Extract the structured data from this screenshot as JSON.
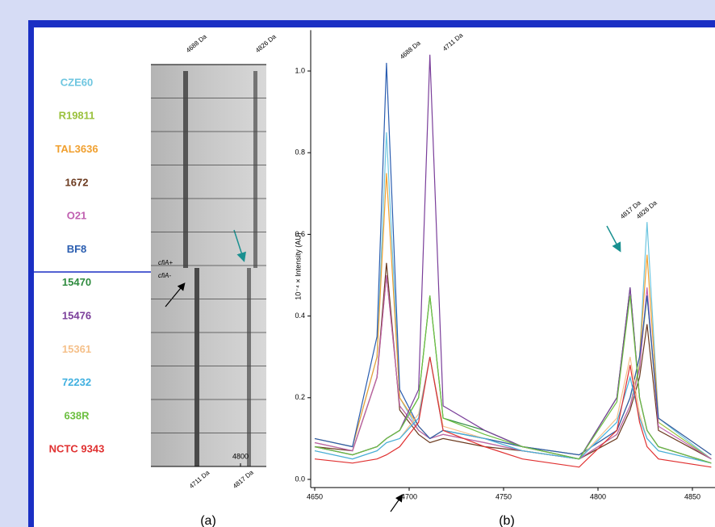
{
  "gel": {
    "panel_label": "(a)",
    "top_annotations": [
      "4688 Da",
      "4826 Da"
    ],
    "bottom_annotations": [
      "4711 Da",
      "4817 Da"
    ],
    "xticks": [
      4800
    ],
    "group_labels": [
      "cfiA+",
      "cfiA-"
    ]
  },
  "chart_data": {
    "type": "line",
    "panel_label": "(b)",
    "ylabel": "10⁻⁴ × Intensity (AU)",
    "annotations": [
      "4688 Da",
      "4711 Da",
      "4817 Da",
      "4826 Da"
    ],
    "x": [
      4650,
      4670,
      4683,
      4688,
      4695,
      4705,
      4711,
      4718,
      4740,
      4760,
      4790,
      4810,
      4817,
      4822,
      4826,
      4832,
      4860
    ],
    "xlim": [
      4650,
      4862
    ],
    "ylim": [
      -0.02,
      1.1
    ],
    "xticks": [
      4650,
      4700,
      4750,
      4800,
      4850
    ],
    "yticks": [
      {
        "value": 0,
        "label": "0.0"
      },
      0.2,
      0.4,
      0.6,
      0.8,
      {
        "value": 1,
        "label": "1.0"
      }
    ],
    "series": [
      {
        "name": "CZE60",
        "color": "#6ec6e0",
        "values": [
          0.1,
          0.08,
          0.3,
          0.85,
          0.2,
          0.12,
          0.1,
          0.12,
          0.1,
          0.08,
          0.06,
          0.12,
          0.2,
          0.3,
          0.63,
          0.15,
          0.05
        ]
      },
      {
        "name": "R19811",
        "color": "#9ac13c",
        "values": [
          0.09,
          0.07,
          0.25,
          0.5,
          0.18,
          0.12,
          0.1,
          0.11,
          0.09,
          0.07,
          0.05,
          0.11,
          0.18,
          0.28,
          0.45,
          0.14,
          0.05
        ]
      },
      {
        "name": "TAL3636",
        "color": "#f0a030",
        "values": [
          0.1,
          0.08,
          0.3,
          0.75,
          0.2,
          0.13,
          0.1,
          0.12,
          0.1,
          0.08,
          0.06,
          0.12,
          0.2,
          0.3,
          0.55,
          0.15,
          0.06
        ]
      },
      {
        "name": "1672",
        "color": "#6b3a1f",
        "values": [
          0.08,
          0.07,
          0.25,
          0.53,
          0.17,
          0.11,
          0.09,
          0.1,
          0.08,
          0.07,
          0.05,
          0.1,
          0.17,
          0.25,
          0.38,
          0.12,
          0.05
        ]
      },
      {
        "name": "O21",
        "color": "#c060b0",
        "values": [
          0.09,
          0.07,
          0.25,
          0.5,
          0.18,
          0.12,
          0.1,
          0.11,
          0.09,
          0.07,
          0.05,
          0.11,
          0.18,
          0.27,
          0.47,
          0.13,
          0.05
        ]
      },
      {
        "name": "BF8",
        "color": "#2a5db0",
        "values": [
          0.1,
          0.08,
          0.35,
          1.02,
          0.22,
          0.13,
          0.1,
          0.12,
          0.1,
          0.08,
          0.06,
          0.12,
          0.2,
          0.3,
          0.45,
          0.15,
          0.06
        ]
      },
      {
        "name": "15470",
        "color": "#2e8b3e",
        "values": [
          0.08,
          0.06,
          0.08,
          0.1,
          0.12,
          0.2,
          0.45,
          0.15,
          0.12,
          0.08,
          0.05,
          0.2,
          0.47,
          0.2,
          0.12,
          0.08,
          0.04
        ]
      },
      {
        "name": "15476",
        "color": "#7a3e9a",
        "values": [
          0.08,
          0.06,
          0.08,
          0.1,
          0.12,
          0.22,
          1.04,
          0.18,
          0.12,
          0.08,
          0.05,
          0.2,
          0.47,
          0.2,
          0.12,
          0.08,
          0.04
        ]
      },
      {
        "name": "15361",
        "color": "#f5c08a",
        "values": [
          0.07,
          0.05,
          0.07,
          0.09,
          0.1,
          0.16,
          0.3,
          0.13,
          0.1,
          0.07,
          0.05,
          0.15,
          0.3,
          0.16,
          0.1,
          0.07,
          0.04
        ]
      },
      {
        "name": "72232",
        "color": "#40b0e0",
        "values": [
          0.07,
          0.05,
          0.07,
          0.09,
          0.1,
          0.15,
          0.3,
          0.12,
          0.1,
          0.07,
          0.05,
          0.14,
          0.25,
          0.15,
          0.1,
          0.07,
          0.04
        ]
      },
      {
        "name": "638R",
        "color": "#6cbf40",
        "values": [
          0.08,
          0.06,
          0.08,
          0.1,
          0.12,
          0.2,
          0.45,
          0.15,
          0.11,
          0.08,
          0.05,
          0.19,
          0.45,
          0.2,
          0.12,
          0.08,
          0.04
        ]
      },
      {
        "name": "NCTC 9343",
        "color": "#e03030",
        "values": [
          0.05,
          0.04,
          0.05,
          0.06,
          0.08,
          0.14,
          0.3,
          0.12,
          0.08,
          0.05,
          0.03,
          0.12,
          0.28,
          0.14,
          0.08,
          0.05,
          0.03
        ]
      }
    ]
  }
}
